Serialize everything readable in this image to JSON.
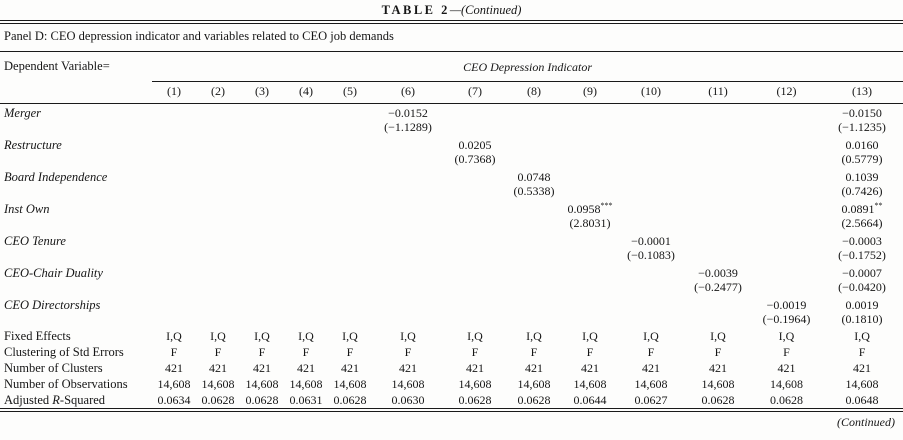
{
  "table": {
    "title_label": "TABLE 2",
    "title_continued": "—(Continued)",
    "panel_heading": "Panel D: CEO depression indicator and variables related to CEO job demands",
    "dependent_variable_label": "Dependent Variable=",
    "span_header": "CEO Depression Indicator",
    "columns": [
      "(1)",
      "(2)",
      "(3)",
      "(4)",
      "(5)",
      "(6)",
      "(7)",
      "(8)",
      "(9)",
      "(10)",
      "(11)",
      "(12)",
      "(13)"
    ],
    "variables": [
      {
        "label": "Merger",
        "coef": [
          "",
          "",
          "",
          "",
          "",
          "−0.0152",
          "",
          "",
          "",
          "",
          "",
          "",
          "−0.0150"
        ],
        "t": [
          "",
          "",
          "",
          "",
          "",
          "(−1.1289)",
          "",
          "",
          "",
          "",
          "",
          "",
          "(−1.1235)"
        ]
      },
      {
        "label": "Restructure",
        "coef": [
          "",
          "",
          "",
          "",
          "",
          "",
          "0.0205",
          "",
          "",
          "",
          "",
          "",
          "0.0160"
        ],
        "t": [
          "",
          "",
          "",
          "",
          "",
          "",
          "(0.7368)",
          "",
          "",
          "",
          "",
          "",
          "(0.5779)"
        ]
      },
      {
        "label": "Board Independence",
        "coef": [
          "",
          "",
          "",
          "",
          "",
          "",
          "",
          "0.0748",
          "",
          "",
          "",
          "",
          "0.1039"
        ],
        "t": [
          "",
          "",
          "",
          "",
          "",
          "",
          "",
          "(0.5338)",
          "",
          "",
          "",
          "",
          "(0.7426)"
        ]
      },
      {
        "label": "Inst Own",
        "coef": [
          "",
          "",
          "",
          "",
          "",
          "",
          "",
          "",
          "0.0958***",
          "",
          "",
          "",
          "0.0891**"
        ],
        "t": [
          "",
          "",
          "",
          "",
          "",
          "",
          "",
          "",
          "(2.8031)",
          "",
          "",
          "",
          "(2.5664)"
        ]
      },
      {
        "label": "CEO Tenure",
        "coef": [
          "",
          "",
          "",
          "",
          "",
          "",
          "",
          "",
          "",
          "−0.0001",
          "",
          "",
          "−0.0003"
        ],
        "t": [
          "",
          "",
          "",
          "",
          "",
          "",
          "",
          "",
          "",
          "(−0.1083)",
          "",
          "",
          "(−0.1752)"
        ]
      },
      {
        "label": "CEO-Chair Duality",
        "coef": [
          "",
          "",
          "",
          "",
          "",
          "",
          "",
          "",
          "",
          "",
          "−0.0039",
          "",
          "−0.0007"
        ],
        "t": [
          "",
          "",
          "",
          "",
          "",
          "",
          "",
          "",
          "",
          "",
          "(−0.2477)",
          "",
          "(−0.0420)"
        ]
      },
      {
        "label": "CEO Directorships",
        "coef": [
          "",
          "",
          "",
          "",
          "",
          "",
          "",
          "",
          "",
          "",
          "",
          "−0.0019",
          "0.0019"
        ],
        "t": [
          "",
          "",
          "",
          "",
          "",
          "",
          "",
          "",
          "",
          "",
          "",
          "(−0.1964)",
          "(0.1810)"
        ]
      }
    ],
    "stats": [
      {
        "label": "Fixed Effects",
        "values": [
          "I,Q",
          "I,Q",
          "I,Q",
          "I,Q",
          "I,Q",
          "I,Q",
          "I,Q",
          "I,Q",
          "I,Q",
          "I,Q",
          "I,Q",
          "I,Q",
          "I,Q"
        ]
      },
      {
        "label": "Clustering of Std Errors",
        "values": [
          "F",
          "F",
          "F",
          "F",
          "F",
          "F",
          "F",
          "F",
          "F",
          "F",
          "F",
          "F",
          "F"
        ]
      },
      {
        "label": "Number of Clusters",
        "values": [
          "421",
          "421",
          "421",
          "421",
          "421",
          "421",
          "421",
          "421",
          "421",
          "421",
          "421",
          "421",
          "421"
        ]
      },
      {
        "label": "Number of Observations",
        "values": [
          "14,608",
          "14,608",
          "14,608",
          "14,608",
          "14,608",
          "14,608",
          "14,608",
          "14,608",
          "14,608",
          "14,608",
          "14,608",
          "14,608",
          "14,608"
        ]
      },
      {
        "label": "Adjusted R-Squared",
        "label_parts": [
          "Adjusted ",
          "R",
          "-Squared"
        ],
        "values": [
          "0.0634",
          "0.0628",
          "0.0628",
          "0.0631",
          "0.0628",
          "0.0630",
          "0.0628",
          "0.0628",
          "0.0644",
          "0.0627",
          "0.0628",
          "0.0628",
          "0.0648"
        ]
      }
    ],
    "footer_continued": "(Continued)"
  }
}
